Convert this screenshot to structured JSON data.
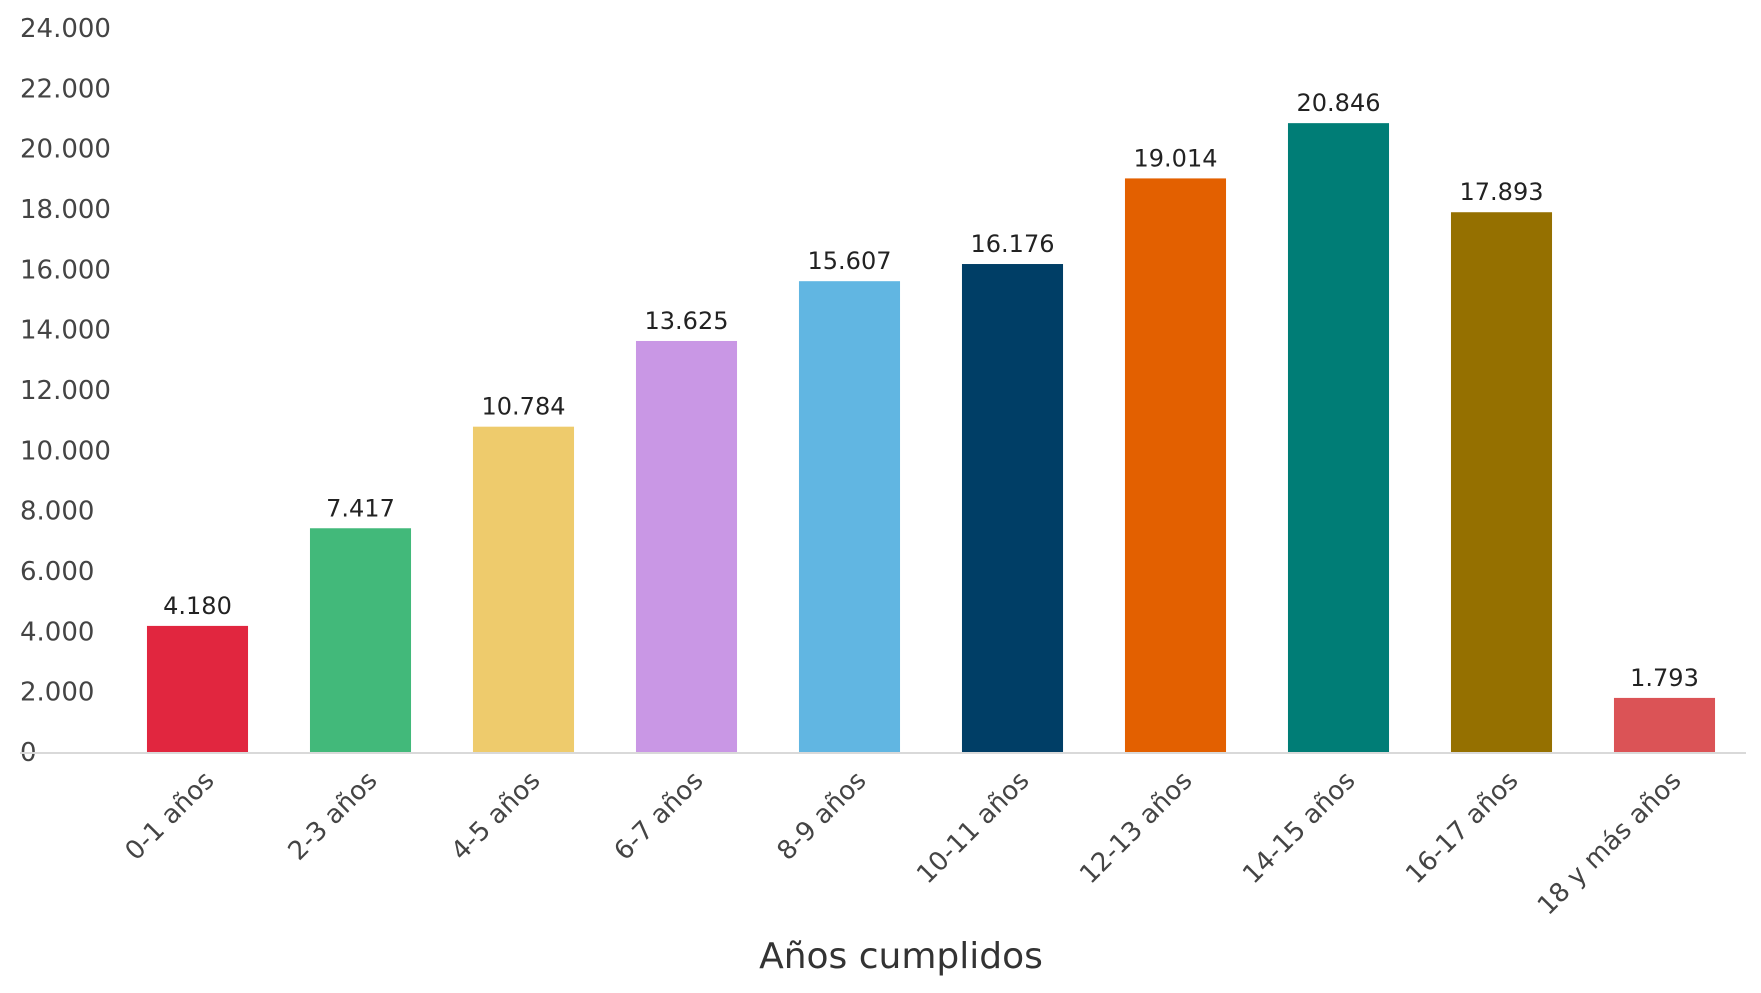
{
  "chart_data": {
    "type": "bar",
    "title": "",
    "xlabel": "Años cumplidos",
    "ylabel": "",
    "ylim": [
      0,
      24000
    ],
    "yticks": [
      0,
      2000,
      4000,
      6000,
      8000,
      10000,
      12000,
      14000,
      16000,
      18000,
      20000,
      22000,
      24000
    ],
    "ytick_labels": [
      "0",
      "2.000",
      "4.000",
      "6.000",
      "8.000",
      "10.000",
      "12.000",
      "14.000",
      "16.000",
      "18.000",
      "20.000",
      "22.000",
      "24.000"
    ],
    "grid": false,
    "legend": "none",
    "categories": [
      "0-1 años",
      "2-3 años",
      "4-5 años",
      "6-7 años",
      "8-9 años",
      "10-11 años",
      "12-13 años",
      "14-15 años",
      "16-17 años",
      "18 y más años"
    ],
    "values": [
      4180,
      7417,
      10784,
      13625,
      15607,
      16176,
      19014,
      20846,
      17893,
      1793
    ],
    "value_labels": [
      "4.180",
      "7.417",
      "10.784",
      "13.625",
      "15.607",
      "16.176",
      "19.014",
      "20.846",
      "17.893",
      "1.793"
    ],
    "colors": [
      "#e1263f",
      "#42b97a",
      "#eecb6c",
      "#c997e5",
      "#61b6e2",
      "#003e66",
      "#e36000",
      "#007d76",
      "#957000",
      "#db5356"
    ]
  }
}
